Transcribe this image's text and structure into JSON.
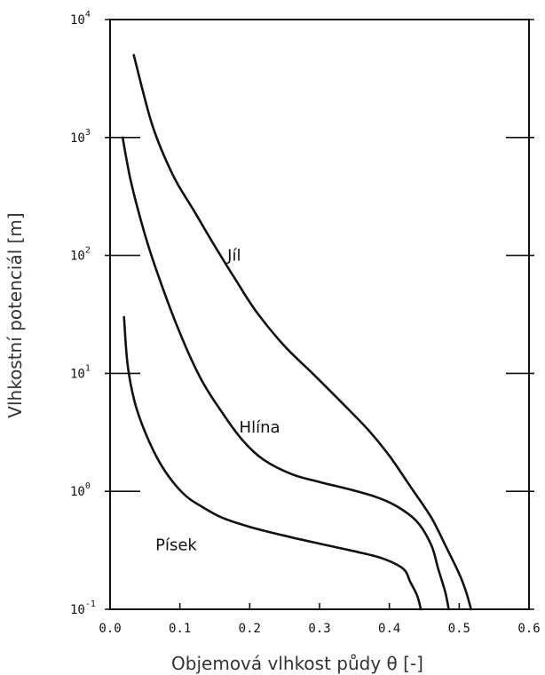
{
  "chart_data": {
    "type": "line",
    "xlabel": "Objemová vlhkost půdy θ [-]",
    "ylabel": "Vlhkostní potenciál [m]",
    "xlim": [
      0.0,
      0.6
    ],
    "ylim": [
      0.1,
      10000
    ],
    "yscale": "log",
    "grid": false,
    "x_ticks": [
      "0.0",
      "0.1",
      "0.2",
      "0.3",
      "0.4",
      "0.5",
      "0.6"
    ],
    "y_ticks": [
      {
        "base": "10",
        "exp": "-1"
      },
      {
        "base": "10",
        "exp": "0"
      },
      {
        "base": "10",
        "exp": "1"
      },
      {
        "base": "10",
        "exp": "2"
      },
      {
        "base": "10",
        "exp": "3"
      },
      {
        "base": "10",
        "exp": "4"
      }
    ],
    "series": [
      {
        "name": "Jíl",
        "x": [
          0.034,
          0.06,
          0.09,
          0.12,
          0.15,
          0.18,
          0.21,
          0.25,
          0.29,
          0.33,
          0.37,
          0.4,
          0.43,
          0.46,
          0.48,
          0.5,
          0.51,
          0.517
        ],
        "y": [
          5000,
          1300,
          480,
          240,
          120,
          62,
          33,
          17,
          10,
          5.8,
          3.3,
          2.0,
          1.1,
          0.6,
          0.35,
          0.2,
          0.14,
          0.1
        ]
      },
      {
        "name": "Hlína",
        "x": [
          0.018,
          0.03,
          0.05,
          0.07,
          0.1,
          0.13,
          0.16,
          0.19,
          0.22,
          0.26,
          0.3,
          0.34,
          0.38,
          0.41,
          0.44,
          0.46,
          0.47,
          0.48,
          0.485
        ],
        "y": [
          1000,
          420,
          150,
          65,
          22,
          9,
          4.7,
          2.7,
          1.85,
          1.4,
          1.2,
          1.05,
          0.9,
          0.75,
          0.55,
          0.35,
          0.22,
          0.14,
          0.1
        ]
      },
      {
        "name": "Písek",
        "x": [
          0.02,
          0.025,
          0.035,
          0.05,
          0.07,
          0.09,
          0.11,
          0.13,
          0.16,
          0.2,
          0.25,
          0.3,
          0.35,
          0.39,
          0.42,
          0.43,
          0.44,
          0.445
        ],
        "y": [
          30,
          12,
          5.8,
          3.2,
          1.8,
          1.2,
          0.9,
          0.75,
          0.6,
          0.5,
          0.42,
          0.36,
          0.31,
          0.27,
          0.22,
          0.17,
          0.13,
          0.1
        ]
      }
    ],
    "annotations": [
      {
        "text": "Jíl",
        "x": 0.168,
        "y": 100
      },
      {
        "text": "Hlína",
        "x": 0.185,
        "y": 3.5
      },
      {
        "text": "Písek",
        "x": 0.065,
        "y": 0.35
      }
    ]
  }
}
